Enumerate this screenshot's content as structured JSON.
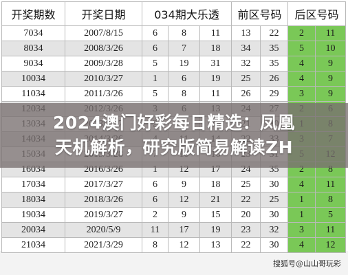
{
  "table": {
    "headers": [
      "开奖期数",
      "开奖日期",
      "034期大乐透",
      "前区号码",
      "后区号码"
    ],
    "rows": [
      {
        "period": "7034",
        "date": "2007/8/15",
        "front": [
          "6",
          "8",
          "11",
          "13",
          "22"
        ],
        "back": [
          "2",
          "11"
        ]
      },
      {
        "period": "8034",
        "date": "2008/3/26",
        "front": [
          "6",
          "7",
          "18",
          "34",
          "35"
        ],
        "back": [
          "5",
          "10"
        ]
      },
      {
        "period": "9034",
        "date": "2009/3/28",
        "front": [
          "5",
          "19",
          "31",
          "32",
          "35"
        ],
        "back": [
          "4",
          "9"
        ]
      },
      {
        "period": "10034",
        "date": "2010/3/27",
        "front": [
          "1",
          "6",
          "19",
          "25",
          "26"
        ],
        "back": [
          "4",
          "9"
        ]
      },
      {
        "period": "11034",
        "date": "2011/3/26",
        "front": [
          "5",
          "8",
          "11",
          "26",
          "29"
        ],
        "back": [
          "3",
          "9"
        ]
      },
      {
        "period": "12034",
        "date": "2012/3/26",
        "front": [
          "3",
          "6",
          "13",
          "24",
          "27"
        ],
        "back": [
          "2",
          "6"
        ]
      },
      {
        "period": "13034",
        "date": "2013/3/27",
        "front": [
          "2",
          "9",
          "15",
          "21",
          "30"
        ],
        "back": [
          "1",
          "8"
        ]
      },
      {
        "period": "14034",
        "date": "2014/3/26",
        "front": [
          "4",
          "11",
          "14",
          "22",
          "33"
        ],
        "back": [
          "3",
          "7"
        ]
      },
      {
        "period": "15034",
        "date": "2015/3/28",
        "front": [
          "7",
          "10",
          "16",
          "23",
          "31"
        ],
        "back": [
          "5",
          "12"
        ]
      },
      {
        "period": "16034",
        "date": "2016/3/26",
        "front": [
          "1",
          "12",
          "17",
          "24",
          "35"
        ],
        "back": [
          "2",
          "8"
        ]
      },
      {
        "period": "17034",
        "date": "2017/3/27",
        "front": [
          "6",
          "9",
          "18",
          "25",
          "30"
        ],
        "back": [
          "4",
          "11"
        ]
      },
      {
        "period": "18034",
        "date": "2018/3/26",
        "front": [
          "6",
          "12",
          "21",
          "22",
          "25"
        ],
        "back": [
          "1",
          "8"
        ]
      },
      {
        "period": "19034",
        "date": "2019/3/27",
        "front": [
          "2",
          "9",
          "15",
          "20",
          "30"
        ],
        "back": [
          "1",
          "5"
        ]
      },
      {
        "period": "20034",
        "date": "2020/5/9",
        "front": [
          "11",
          "17",
          "19",
          "23",
          "32"
        ],
        "back": [
          "3",
          "11"
        ]
      },
      {
        "period": "21034",
        "date": "2021/3/29",
        "front": [
          "8",
          "12",
          "13",
          "22",
          "30"
        ],
        "back": [
          "4",
          "12"
        ]
      }
    ]
  },
  "banner": {
    "line1": "2024澳门好彩每日精选：凤凰",
    "line2": "天机解析，研究版简易解读ZH"
  },
  "watermark": "搜狐号@山山哥玩彩",
  "colors": {
    "back_zone": "#7ac857",
    "stripe": "#e4e4e4",
    "banner_overlay": "#787070"
  }
}
